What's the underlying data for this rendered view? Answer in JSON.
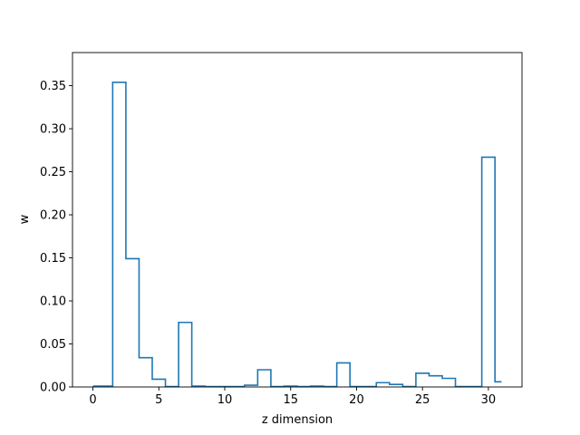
{
  "chart_data": {
    "type": "step",
    "title": "",
    "xlabel": "z dimension",
    "ylabel": "w",
    "xlim": [
      -1.55,
      32.55
    ],
    "ylim": [
      0,
      0.3885
    ],
    "xticks": [
      0,
      5,
      10,
      15,
      20,
      25,
      30
    ],
    "yticks": [
      0.0,
      0.05,
      0.1,
      0.15,
      0.2,
      0.25,
      0.3,
      0.35
    ],
    "ytick_labels": [
      "0.00",
      "0.05",
      "0.10",
      "0.15",
      "0.20",
      "0.25",
      "0.30",
      "0.35"
    ],
    "xtick_labels": [
      "0",
      "5",
      "10",
      "15",
      "20",
      "25",
      "30"
    ],
    "line_color": "#1f77b4",
    "grid": false,
    "step_where": "mid",
    "x": [
      0,
      1,
      2,
      3,
      4,
      5,
      6,
      7,
      8,
      9,
      10,
      11,
      12,
      13,
      14,
      15,
      16,
      17,
      18,
      19,
      20,
      21,
      22,
      23,
      24,
      25,
      26,
      27,
      28,
      29,
      30,
      31
    ],
    "values": [
      0.001,
      0.001,
      0.354,
      0.149,
      0.034,
      0.009,
      0.0005,
      0.075,
      0.001,
      0.0005,
      0.0005,
      0.0005,
      0.002,
      0.02,
      0.0005,
      0.001,
      0.0005,
      0.001,
      0.0005,
      0.028,
      0.0005,
      0.0005,
      0.005,
      0.003,
      0.0005,
      0.016,
      0.013,
      0.01,
      0.0005,
      0.0005,
      0.267,
      0.006
    ]
  }
}
